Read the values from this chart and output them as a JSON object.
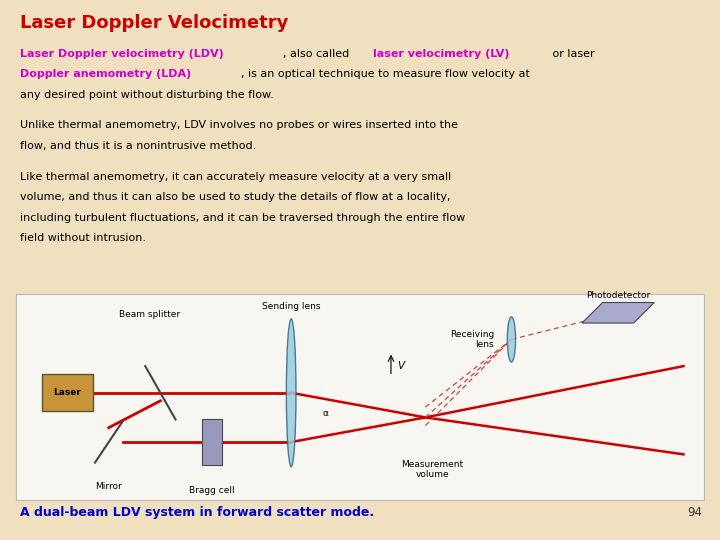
{
  "title": "Laser Doppler Velocimetry",
  "title_color": "#cc0000",
  "title_fontsize": 13,
  "bg_color": "#f0e0c0",
  "para2": "Unlike thermal anemometry, LDV involves no probes or wires inserted into the\nflow, and thus it is a nonintrusive method.",
  "para3": "Like thermal anemometry, it can accurately measure velocity at a very small\nvolume, and thus it can also be used to study the details of flow at a locality,\nincluding turbulent fluctuations, and it can be traversed through the entire flow\nfield without intrusion.",
  "caption": "A dual-beam LDV system in forward scatter mode.",
  "caption_color": "#0000cc",
  "page_num": "94",
  "text_fontsize": 8.0,
  "caption_fontsize": 9.0,
  "purple": "#cc00cc",
  "black": "#000000",
  "red": "#cc0000"
}
